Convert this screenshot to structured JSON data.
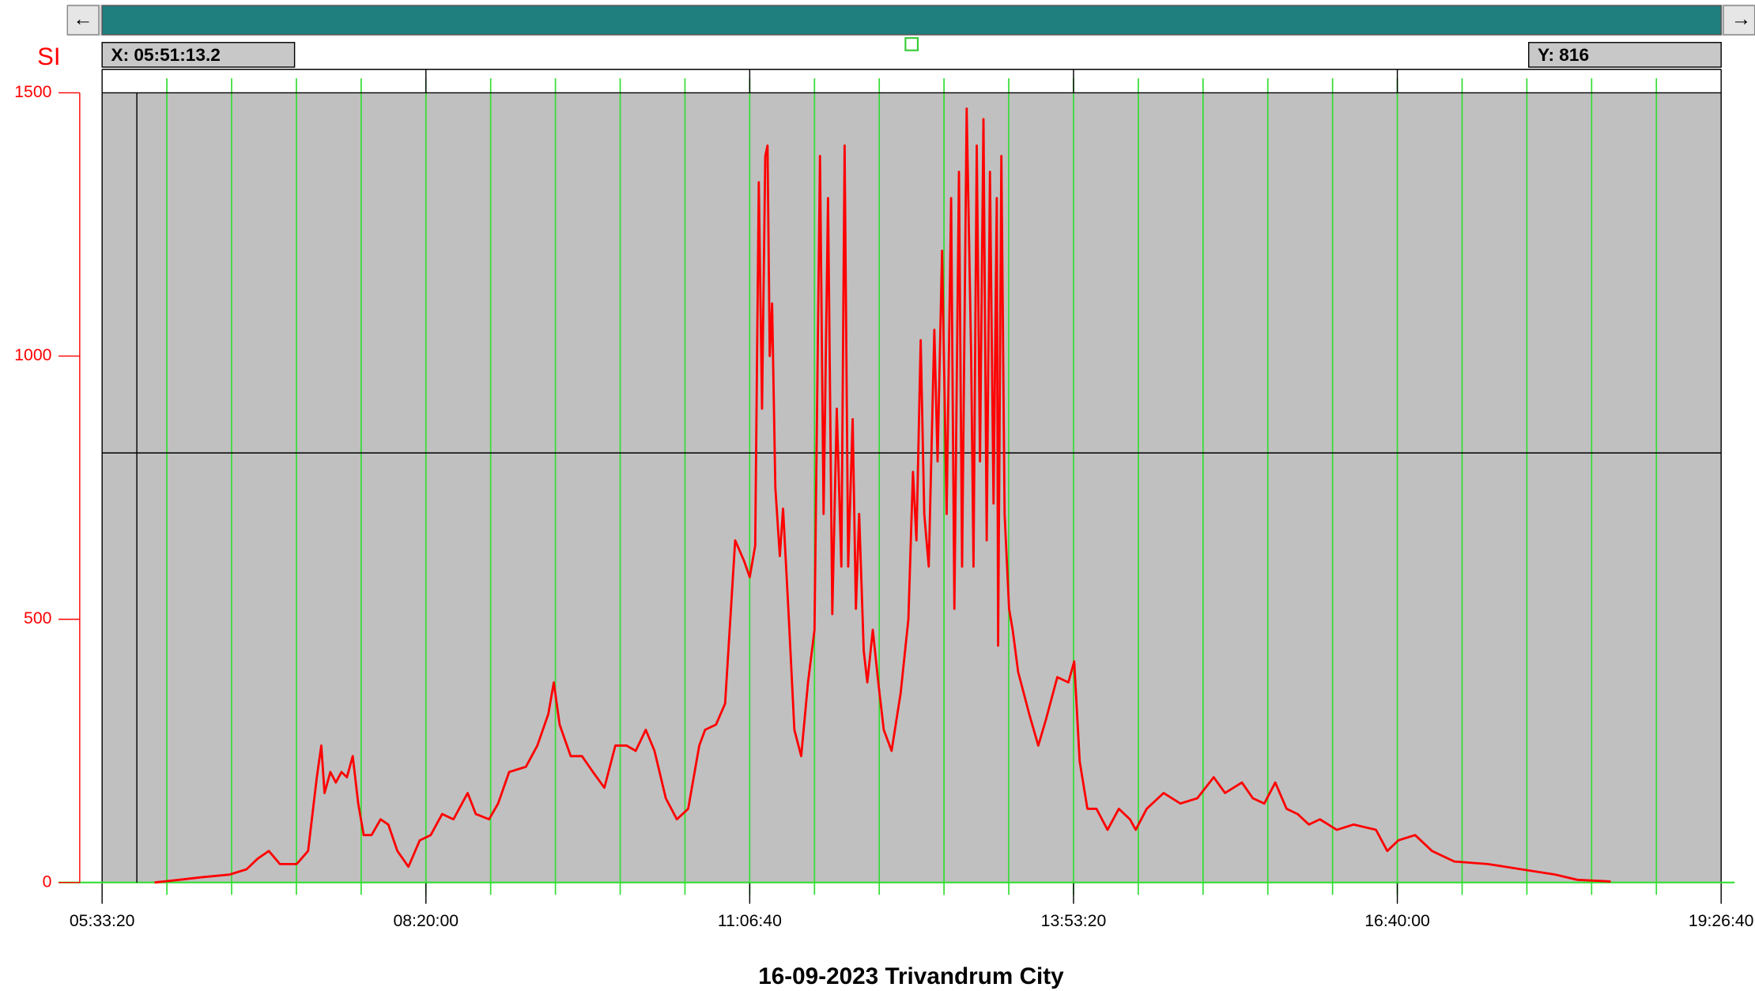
{
  "toolbar": {
    "left": "←",
    "right": "→"
  },
  "chart_data": {
    "type": "line",
    "title": "16-09-2023 Trivandrum City",
    "y_label": "SI",
    "xlim": [
      20000,
      70000
    ],
    "xticks": [
      {
        "value": 20000,
        "label": "05:33:20"
      },
      {
        "value": 30000,
        "label": "08:20:00"
      },
      {
        "value": 40000,
        "label": "11:06:40"
      },
      {
        "value": 50000,
        "label": "13:53:20"
      },
      {
        "value": 60000,
        "label": "16:40:00"
      },
      {
        "value": 70000,
        "label": "19:26:40"
      }
    ],
    "xgrid": [
      22000,
      24000,
      26000,
      28000,
      30000,
      32000,
      34000,
      36000,
      38000,
      40000,
      42000,
      44000,
      46000,
      48000,
      50000,
      52000,
      54000,
      56000,
      58000,
      60000,
      62000,
      64000,
      66000,
      68000
    ],
    "grid_color": "#33dd33",
    "ylim": [
      0,
      1500
    ],
    "yticks": [
      0,
      500,
      1000,
      1500
    ],
    "background": "#c0c0c0",
    "cursor": {
      "x": 21073.2,
      "x_label": "X:  05:51:13.2",
      "y": 816,
      "y_label": "Y:  816"
    },
    "x": [
      21620,
      22380,
      23070,
      23940,
      24460,
      24800,
      25150,
      25490,
      26010,
      26360,
      26630,
      26770,
      26870,
      27050,
      27220,
      27390,
      27560,
      27740,
      27910,
      28080,
      28320,
      28600,
      28840,
      29120,
      29460,
      29810,
      30150,
      30500,
      30850,
      31290,
      31540,
      31950,
      32230,
      32570,
      33090,
      33440,
      33780,
      33950,
      34130,
      34470,
      34820,
      35160,
      35510,
      35850,
      36200,
      36480,
      36790,
      37060,
      37410,
      37750,
      38100,
      38440,
      38620,
      38960,
      39240,
      39550,
      39830,
      40000,
      40170,
      40280,
      40380,
      40480,
      40550,
      40620,
      40690,
      40790,
      40930,
      41030,
      41210,
      41380,
      41590,
      41800,
      42000,
      42170,
      42280,
      42420,
      42550,
      42690,
      42830,
      42930,
      43040,
      43180,
      43280,
      43380,
      43520,
      43630,
      43800,
      43970,
      44140,
      44380,
      44660,
      44900,
      45040,
      45150,
      45280,
      45390,
      45530,
      45700,
      45800,
      45940,
      46080,
      46220,
      46320,
      46460,
      46560,
      46700,
      46840,
      46910,
      47010,
      47110,
      47220,
      47320,
      47420,
      47530,
      47630,
      47670,
      47770,
      47870,
      48010,
      48120,
      48290,
      48630,
      48910,
      49150,
      49500,
      49840,
      50020,
      50190,
      50430,
      50710,
      51050,
      51400,
      51740,
      51920,
      52260,
      52780,
      53300,
      53820,
      54330,
      54680,
      55200,
      55540,
      55890,
      56230,
      56580,
      56920,
      57270,
      57610,
      58130,
      58650,
      59340,
      59690,
      60030,
      60550,
      61070,
      61760,
      62800,
      63830,
      64870,
      65560,
      66590
    ],
    "series": [
      {
        "color": "#ff0000",
        "values": [
          0,
          5,
          10,
          15,
          25,
          45,
          60,
          35,
          35,
          60,
          200,
          260,
          170,
          210,
          190,
          210,
          200,
          240,
          150,
          90,
          90,
          120,
          110,
          60,
          30,
          80,
          90,
          130,
          120,
          170,
          130,
          120,
          150,
          210,
          220,
          260,
          320,
          380,
          300,
          240,
          240,
          210,
          180,
          260,
          260,
          250,
          290,
          250,
          160,
          120,
          140,
          260,
          290,
          300,
          340,
          650,
          610,
          580,
          640,
          1330,
          900,
          1380,
          1400,
          1000,
          1100,
          750,
          620,
          710,
          500,
          290,
          240,
          380,
          480,
          1380,
          700,
          1300,
          510,
          900,
          600,
          1400,
          600,
          880,
          520,
          700,
          440,
          380,
          480,
          380,
          290,
          250,
          360,
          500,
          780,
          650,
          1030,
          700,
          600,
          1050,
          800,
          1200,
          700,
          1300,
          520,
          1350,
          600,
          1470,
          1000,
          600,
          1400,
          800,
          1450,
          650,
          1350,
          720,
          1300,
          450,
          1380,
          700,
          520,
          480,
          400,
          320,
          260,
          310,
          390,
          380,
          420,
          230,
          140,
          140,
          100,
          140,
          120,
          100,
          140,
          170,
          150,
          160,
          200,
          170,
          190,
          160,
          150,
          190,
          140,
          130,
          110,
          120,
          100,
          110,
          100,
          60,
          80,
          90,
          60,
          40,
          35,
          25,
          15,
          5,
          2
        ]
      }
    ]
  }
}
